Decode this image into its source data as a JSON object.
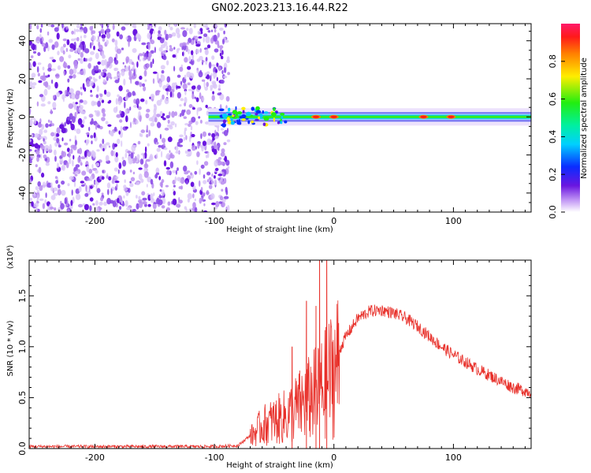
{
  "title": "GN02.2023.213.16.44.R22",
  "colors": {
    "snr_line": "#e8302a",
    "noise_purple": "#6a16e0",
    "frame": "#000000"
  },
  "chart_data": [
    {
      "type": "heatmap",
      "name": "spectrogram",
      "xlabel": "Height of straight line (km)",
      "ylabel": "Frequency (Hz)",
      "xlim": [
        -255,
        165
      ],
      "ylim": [
        -50,
        49
      ],
      "xticks": [
        -200,
        -100,
        0,
        100
      ],
      "xtick_labels": [
        "-200",
        "-100",
        "0",
        "100"
      ],
      "yticks": [
        -40,
        -20,
        0,
        20,
        40
      ],
      "ytick_labels": [
        "-40",
        "-20",
        "0",
        "20",
        "40"
      ],
      "noise_region_x": [
        -255,
        -88
      ],
      "signal_band": {
        "x": [
          -105,
          165
        ],
        "center_hz": 0,
        "peaks_x": [
          -15,
          0,
          75,
          98
        ]
      },
      "colorbar": {
        "label": "Normalized spectral amplitude",
        "ticks": [
          0.0,
          0.2,
          0.4,
          0.6,
          0.8
        ],
        "tick_labels": [
          "0.0",
          "0.2",
          "0.4",
          "0.6",
          "0.8"
        ],
        "range": [
          0,
          1
        ]
      }
    },
    {
      "type": "line",
      "name": "snr",
      "xlabel": "Height of straight line (km)",
      "ylabel": "SNR (10 * v/v)",
      "multiplier_label": "(x10⁴)",
      "xlim": [
        -255,
        165
      ],
      "ylim": [
        0,
        1.85
      ],
      "xticks": [
        -200,
        -100,
        0,
        100
      ],
      "xtick_labels": [
        "-200",
        "-100",
        "0",
        "100"
      ],
      "yticks": [
        0.0,
        0.5,
        1.0,
        1.5
      ],
      "ytick_labels": [
        "0.0",
        "0.5",
        "1.0",
        "1.5"
      ],
      "envelope": {
        "x": [
          -255,
          -100,
          -80,
          -68,
          -60,
          -50,
          -40,
          -30,
          -20,
          -10,
          0,
          10,
          20,
          30,
          40,
          50,
          60,
          70,
          80,
          90,
          100,
          110,
          120,
          130,
          140,
          150,
          165
        ],
        "y": [
          0.02,
          0.02,
          0.03,
          0.15,
          0.25,
          0.3,
          0.35,
          0.45,
          0.55,
          0.65,
          0.85,
          1.1,
          1.28,
          1.35,
          1.36,
          1.33,
          1.28,
          1.2,
          1.1,
          1.0,
          0.92,
          0.85,
          0.78,
          0.72,
          0.66,
          0.6,
          0.55
        ]
      },
      "spikes": [
        {
          "x": -12,
          "y": 1.85
        },
        {
          "x": -6,
          "y": 1.85
        },
        {
          "x": -23,
          "y": 1.45
        },
        {
          "x": -15,
          "y": 1.4
        },
        {
          "x": -35,
          "y": 1.0
        }
      ]
    }
  ]
}
